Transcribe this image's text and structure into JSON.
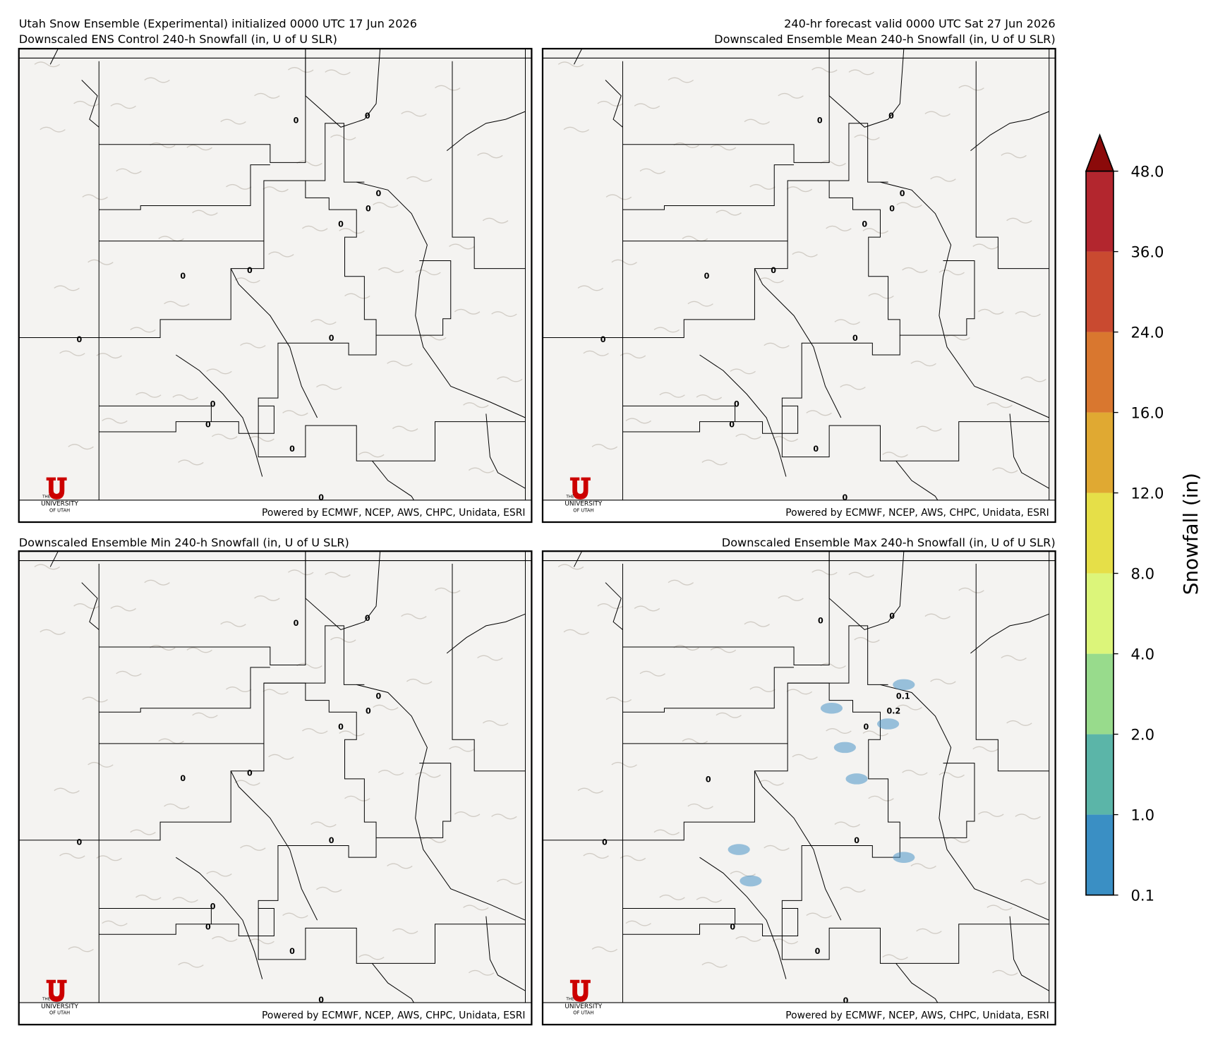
{
  "header": {
    "left_line1": "Utah Snow Ensemble (Experimental) initialized 0000 UTC 17 Jun 2026",
    "right_line1": "240-hr forecast valid 0000 UTC Sat 27 Jun 2026"
  },
  "panels": [
    {
      "title": "Downscaled ENS Control 240-h Snowfall (in, U of U SLR)",
      "contour_labels": [
        0,
        0,
        0,
        0,
        0,
        0,
        0,
        0,
        0,
        0,
        0,
        0,
        0
      ],
      "credit": "Powered by ECMWF, NCEP, AWS, CHPC, Unidata, ESRI",
      "logo_top": "THE",
      "logo_line1": "UNIVERSITY",
      "logo_line2": "OF UTAH"
    },
    {
      "title": "Downscaled Ensemble Mean 240-h Snowfall (in, U of U SLR)",
      "contour_labels": [
        0,
        0,
        0,
        0,
        0,
        0,
        0,
        0,
        0,
        0,
        0,
        0,
        0
      ],
      "credit": "Powered by ECMWF, NCEP, AWS, CHPC, Unidata, ESRI",
      "logo_top": "THE",
      "logo_line1": "UNIVERSITY",
      "logo_line2": "OF UTAH"
    },
    {
      "title": "Downscaled Ensemble Min 240-h Snowfall (in, U of U SLR)",
      "contour_labels": [
        0,
        0,
        0,
        0,
        0,
        0,
        0,
        0,
        0,
        0,
        0,
        0,
        0
      ],
      "credit": "Powered by ECMWF, NCEP, AWS, CHPC, Unidata, ESRI",
      "logo_top": "THE",
      "logo_line1": "UNIVERSITY",
      "logo_line2": "OF UTAH"
    },
    {
      "title": "Downscaled Ensemble Max 240-h Snowfall (in, U of U SLR)",
      "contour_labels": [
        0,
        0,
        0.1,
        0.2,
        0,
        0,
        0,
        0,
        0,
        0,
        0
      ],
      "credit": "Powered by ECMWF, NCEP, AWS, CHPC, Unidata, ESRI",
      "logo_top": "THE",
      "logo_line1": "UNIVERSITY",
      "logo_line2": "OF UTAH"
    }
  ],
  "colorbar": {
    "label": "Snowfall (in)",
    "ticks": [
      0.1,
      {
        "value": 1,
        "label": "1.0"
      },
      {
        "value": 2,
        "label": "2.0"
      },
      {
        "value": 4,
        "label": "4.0"
      },
      {
        "value": 8,
        "label": "8.0"
      },
      {
        "value": 12,
        "label": "12.0"
      },
      {
        "value": 16,
        "label": "16.0"
      },
      {
        "value": 24,
        "label": "24.0"
      },
      {
        "value": 36,
        "label": "36.0"
      },
      {
        "value": 48,
        "label": "48.0"
      }
    ],
    "colors": [
      "#3a8fc4",
      "#5bb5a8",
      "#98db8c",
      "#dcf57a",
      "#e6df48",
      "#e0a932",
      "#d9772f",
      "#c94a30",
      "#b3262e"
    ],
    "extend_color": "#8b0a0a"
  }
}
